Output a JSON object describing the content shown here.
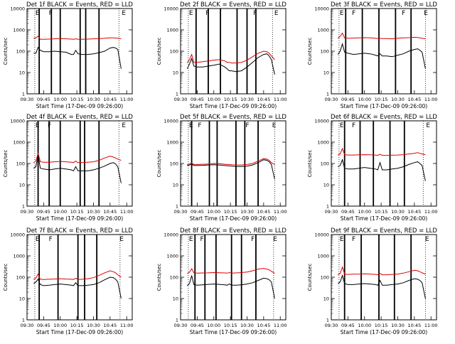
{
  "chart_data": {
    "type": "line",
    "grid": "off",
    "y_scale": "log",
    "ylim": [
      1,
      10000
    ],
    "xlim": [
      "09:30",
      "11:05"
    ],
    "ylabel": "Counts/sec",
    "xlabel": "Start Time (17-Dec-09 09:26:00)",
    "x_tick_labels": [
      "09:30",
      "09:45",
      "10:00",
      "10:15",
      "10:30",
      "10:45",
      "11:00"
    ],
    "y_tick_labels": [
      "1",
      "10",
      "100",
      "1000",
      "10000"
    ],
    "series_colors": {
      "events": "#000000",
      "lld": "#dd0000"
    },
    "x": [
      "09:30",
      "09:36",
      "09:38",
      "09:40",
      "09:42",
      "09:45",
      "09:50",
      "09:55",
      "10:00",
      "10:05",
      "10:10",
      "10:12",
      "10:14",
      "10:16",
      "10:20",
      "10:25",
      "10:30",
      "10:35",
      "10:40",
      "10:45",
      "10:48",
      "10:50",
      "10:52",
      "10:55"
    ],
    "panels": [
      {
        "title": "Det 1f BLACK = Events, RED = LLD",
        "markers": {
          "thick": [
            "09:41",
            "09:52",
            "10:00",
            "10:18",
            "10:23",
            "10:35"
          ],
          "dotted": [
            "09:37",
            "10:53"
          ]
        },
        "labels": [
          {
            "text": "E",
            "at": "09:37"
          },
          {
            "text": "F",
            "at": "09:49"
          },
          {
            "text": "E",
            "at": "10:55"
          }
        ],
        "series": [
          {
            "values": [
              null,
              80,
              80,
              150,
              110,
              95,
              95,
              100,
              95,
              90,
              70,
              70,
              110,
              75,
              70,
              70,
              75,
              85,
              100,
              140,
              150,
              140,
              120,
              15
            ]
          },
          {
            "values": [
              null,
              400,
              420,
              500,
              360,
              360,
              370,
              380,
              390,
              380,
              370,
              360,
              380,
              360,
              360,
              370,
              380,
              390,
              400,
              420,
              420,
              410,
              400,
              380
            ]
          }
        ]
      },
      {
        "title": "Det 2f BLACK = Events, RED = LLD",
        "markers": {
          "thick": [
            "09:44",
            "09:55",
            "10:06",
            "10:21",
            "10:30",
            "10:38"
          ],
          "dotted": [
            "09:37",
            "10:53"
          ]
        },
        "labels": [
          {
            "text": "E",
            "at": "09:37"
          },
          {
            "text": "F",
            "at": "09:52"
          },
          {
            "text": "F",
            "at": "10:35"
          },
          {
            "text": "E",
            "at": "10:54"
          }
        ],
        "series": [
          {
            "values": [
              null,
              15,
              25,
              45,
              20,
              18,
              18,
              20,
              22,
              25,
              18,
              15,
              12,
              12,
              11,
              12,
              18,
              30,
              50,
              70,
              75,
              60,
              40,
              8
            ]
          },
          {
            "values": [
              null,
              28,
              40,
              70,
              30,
              30,
              32,
              35,
              38,
              40,
              35,
              30,
              30,
              28,
              28,
              30,
              38,
              55,
              80,
              100,
              95,
              80,
              60,
              40
            ]
          }
        ]
      },
      {
        "title": "Det 3f BLACK = Events, RED = LLD",
        "markers": {
          "thick": [
            "09:43",
            "09:58",
            "10:13",
            "10:28",
            "10:42"
          ],
          "dotted": [
            "09:37",
            "10:55"
          ]
        },
        "labels": [
          {
            "text": "E",
            "at": "09:37"
          },
          {
            "text": "F",
            "at": "09:48"
          },
          {
            "text": "F",
            "at": "10:33"
          },
          {
            "text": "E",
            "at": "10:53"
          }
        ],
        "series": [
          {
            "values": [
              null,
              70,
              100,
              220,
              90,
              80,
              70,
              75,
              80,
              75,
              65,
              60,
              75,
              60,
              60,
              55,
              65,
              75,
              100,
              120,
              130,
              110,
              90,
              15
            ]
          },
          {
            "values": [
              null,
              400,
              500,
              700,
              420,
              400,
              410,
              420,
              430,
              420,
              400,
              390,
              400,
              390,
              390,
              380,
              400,
              420,
              430,
              450,
              440,
              420,
              400,
              380
            ]
          }
        ]
      },
      {
        "title": "Det 4f BLACK = Events, RED = LLD",
        "markers": {
          "thick": [
            "09:40",
            "09:50",
            "10:00",
            "10:18",
            "10:22",
            "10:35"
          ],
          "dotted": [
            "09:37",
            "10:53"
          ]
        },
        "labels": [
          {
            "text": "E",
            "at": "09:37"
          },
          {
            "text": "F",
            "at": "09:48"
          },
          {
            "text": "E",
            "at": "10:55"
          }
        ],
        "series": [
          {
            "values": [
              null,
              60,
              70,
              250,
              60,
              55,
              50,
              55,
              60,
              55,
              50,
              45,
              70,
              45,
              45,
              45,
              50,
              60,
              75,
              100,
              110,
              95,
              70,
              12
            ]
          },
          {
            "values": [
              null,
              110,
              130,
              300,
              120,
              115,
              115,
              120,
              125,
              120,
              115,
              110,
              130,
              110,
              110,
              115,
              120,
              140,
              180,
              220,
              200,
              180,
              160,
              140
            ]
          }
        ]
      },
      {
        "title": "Det 5f BLACK = Events, RED = LLD",
        "markers": {
          "thick": [
            "09:40",
            "09:56",
            "10:03",
            "10:20",
            "10:28",
            "10:40"
          ],
          "dotted": [
            "09:37",
            "10:55"
          ]
        },
        "labels": [
          {
            "text": "E",
            "at": "09:37"
          },
          {
            "text": "F",
            "at": "09:45"
          },
          {
            "text": "F",
            "at": "10:28"
          },
          {
            "text": "E",
            "at": "10:52"
          }
        ],
        "series": [
          {
            "values": [
              null,
              80,
              85,
              95,
              80,
              80,
              82,
              85,
              88,
              85,
              80,
              78,
              78,
              75,
              72,
              72,
              75,
              85,
              110,
              150,
              140,
              120,
              90,
              18
            ]
          },
          {
            "values": [
              null,
              90,
              95,
              105,
              90,
              90,
              92,
              95,
              100,
              98,
              92,
              90,
              90,
              88,
              85,
              85,
              90,
              100,
              130,
              170,
              160,
              140,
              110,
              90
            ]
          }
        ]
      },
      {
        "title": "Det 6f BLACK = Events, RED = LLD",
        "markers": {
          "thick": [
            "09:42",
            "09:56",
            "10:08",
            "10:23",
            "10:36"
          ],
          "dotted": [
            "09:37",
            "10:53"
          ]
        },
        "labels": [
          {
            "text": "E",
            "at": "09:37"
          },
          {
            "text": "F",
            "at": "09:48"
          },
          {
            "text": "E",
            "at": "10:55"
          }
        ],
        "series": [
          {
            "values": [
              null,
              70,
              80,
              150,
              60,
              55,
              55,
              60,
              65,
              60,
              55,
              50,
              110,
              50,
              50,
              55,
              60,
              70,
              90,
              110,
              120,
              100,
              80,
              15
            ]
          },
          {
            "values": [
              null,
              250,
              280,
              500,
              260,
              250,
              250,
              255,
              260,
              255,
              245,
              240,
              270,
              240,
              240,
              245,
              250,
              260,
              280,
              300,
              320,
              300,
              280,
              260
            ]
          }
        ]
      },
      {
        "title": "Det 7f BLACK = Events, RED = LLD",
        "markers": {
          "thick": [
            "09:41",
            "09:58",
            "10:16",
            "10:22",
            "10:33"
          ],
          "dotted": [
            "09:37",
            "10:54"
          ]
        },
        "labels": [
          {
            "text": "E",
            "at": "09:37"
          },
          {
            "text": "F",
            "at": "09:49"
          },
          {
            "text": "E",
            "at": "10:53"
          }
        ],
        "series": [
          {
            "values": [
              null,
              50,
              60,
              80,
              45,
              40,
              42,
              45,
              48,
              45,
              42,
              40,
              55,
              40,
              40,
              42,
              45,
              55,
              75,
              100,
              95,
              80,
              60,
              10
            ]
          },
          {
            "values": [
              null,
              80,
              90,
              140,
              80,
              78,
              80,
              82,
              85,
              82,
              80,
              78,
              90,
              78,
              80,
              85,
              95,
              120,
              160,
              200,
              180,
              160,
              130,
              100
            ]
          }
        ]
      },
      {
        "title": "Det 8f BLACK = Events, RED = LLD",
        "markers": {
          "thick": [
            "09:43",
            "09:52",
            "10:02",
            "10:16",
            "10:25",
            "10:38"
          ],
          "dotted": [
            "09:37",
            "10:54"
          ]
        },
        "labels": [
          {
            "text": "E",
            "at": "09:37"
          },
          {
            "text": "F",
            "at": "09:47"
          },
          {
            "text": "F",
            "at": "10:33"
          },
          {
            "text": "E",
            "at": "10:53"
          }
        ],
        "series": [
          {
            "values": [
              null,
              40,
              50,
              120,
              45,
              42,
              44,
              46,
              48,
              46,
              44,
              42,
              48,
              42,
              42,
              44,
              48,
              55,
              70,
              90,
              85,
              75,
              60,
              10
            ]
          },
          {
            "values": [
              null,
              150,
              170,
              250,
              160,
              155,
              158,
              160,
              165,
              162,
              158,
              155,
              165,
              155,
              158,
              165,
              175,
              200,
              240,
              260,
              240,
              220,
              190,
              150
            ]
          }
        ]
      },
      {
        "title": "Det 9f BLACK = Events, RED = LLD",
        "markers": {
          "thick": [
            "09:42",
            "09:57",
            "10:13",
            "10:27",
            "10:42"
          ],
          "dotted": [
            "09:37",
            "10:55"
          ]
        },
        "labels": [
          {
            "text": "E",
            "at": "09:37"
          },
          {
            "text": "F",
            "at": "09:48"
          },
          {
            "text": "E",
            "at": "10:54"
          }
        ],
        "series": [
          {
            "values": [
              null,
              50,
              60,
              120,
              50,
              45,
              45,
              48,
              50,
              48,
              45,
              42,
              70,
              42,
              42,
              45,
              48,
              55,
              70,
              85,
              80,
              70,
              55,
              10
            ]
          },
          {
            "values": [
              null,
              130,
              150,
              300,
              140,
              135,
              138,
              140,
              145,
              140,
              135,
              130,
              150,
              130,
              130,
              135,
              140,
              155,
              180,
              210,
              200,
              180,
              160,
              140
            ]
          }
        ]
      }
    ]
  }
}
